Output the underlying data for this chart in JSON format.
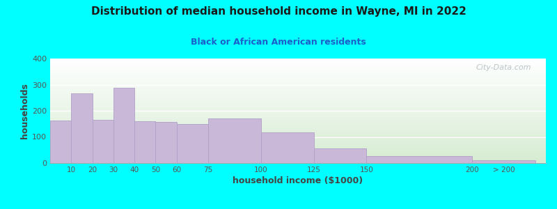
{
  "title": "Distribution of median household income in Wayne, MI in 2022",
  "subtitle": "Black or African American residents",
  "xlabel": "household income ($1000)",
  "ylabel": "households",
  "background_color": "#00FFFF",
  "plot_bg_top": "#d6ecd2",
  "plot_bg_bottom": "#ffffff",
  "bar_color": "#c9b8d8",
  "bar_edge_color": "#b0a0c8",
  "title_color": "#1a1a1a",
  "subtitle_color": "#1a5fcc",
  "axis_label_color": "#444444",
  "tick_label_color": "#555555",
  "values": [
    163,
    268,
    165,
    288,
    160,
    158,
    150,
    170,
    117,
    55,
    28,
    12
  ],
  "left_edges": [
    0,
    10,
    20,
    30,
    40,
    50,
    60,
    75,
    100,
    125,
    150,
    200
  ],
  "right_edges": [
    10,
    20,
    30,
    40,
    50,
    60,
    75,
    100,
    125,
    150,
    200,
    230
  ],
  "xtick_positions": [
    10,
    20,
    30,
    40,
    50,
    60,
    75,
    100,
    125,
    150,
    200,
    215
  ],
  "xtick_labels": [
    "10",
    "20",
    "30",
    "40",
    "50",
    "60",
    "75",
    "100",
    "125",
    "150",
    "200",
    "> 200"
  ],
  "ylim": [
    0,
    400
  ],
  "yticks": [
    0,
    100,
    200,
    300,
    400
  ],
  "xlim": [
    0,
    235
  ],
  "watermark": "City-Data.com"
}
